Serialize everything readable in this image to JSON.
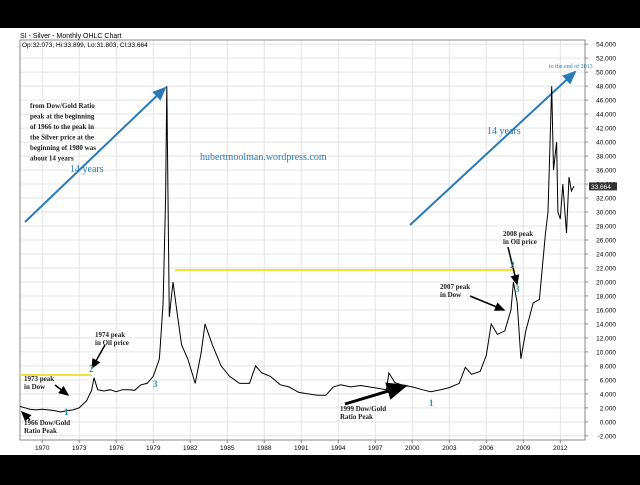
{
  "chart_data": {
    "type": "line",
    "title": "SI - Silver - Monthly OHLC Chart",
    "ohlc": "Op:32.073, Hi:33.899, Lo:31.803, Cl:33.664",
    "last_price": {
      "value": 33.664,
      "label": "33.664"
    },
    "color": "#000000",
    "x": [
      1968.2,
      1968.6,
      1969,
      1969.5,
      1970,
      1970.5,
      1971,
      1971.5,
      1972,
      1972.5,
      1973,
      1973.3,
      1973.6,
      1974,
      1974.2,
      1974.5,
      1975,
      1975.5,
      1976,
      1976.5,
      1977,
      1977.5,
      1978,
      1978.5,
      1979,
      1979.5,
      1979.8,
      1980.0,
      1980.1,
      1980.3,
      1980.6,
      1980.9,
      1981.3,
      1981.8,
      1982.4,
      1982.9,
      1983.2,
      1983.8,
      1984.5,
      1985.2,
      1986,
      1986.8,
      1987.3,
      1987.8,
      1988.5,
      1989.3,
      1990,
      1990.8,
      1991.5,
      1992.3,
      1993,
      1993.6,
      1994.2,
      1995,
      1995.8,
      1996.5,
      1997.2,
      1997.9,
      1998.1,
      1998.6,
      1999.3,
      2000,
      2000.8,
      2001.5,
      2002.3,
      2003,
      2003.8,
      2004.3,
      2004.8,
      2005.5,
      2006,
      2006.4,
      2006.9,
      2007.5,
      2008.0,
      2008.2,
      2008.5,
      2008.8,
      2009.2,
      2009.8,
      2010.3,
      2010.8,
      2011.0,
      2011.3,
      2011.45,
      2011.7,
      2011.8,
      2012.0,
      2012.2,
      2012.5,
      2012.7,
      2012.9,
      2013.1
    ],
    "values": [
      2.2,
      2.0,
      1.8,
      1.7,
      1.8,
      1.7,
      1.6,
      1.4,
      1.6,
      1.7,
      2.0,
      2.5,
      3.0,
      4.5,
      6.3,
      4.6,
      4.4,
      4.6,
      4.3,
      4.6,
      4.6,
      4.5,
      5.3,
      5.5,
      6.5,
      9.0,
      17,
      32,
      48,
      15,
      20,
      16,
      11,
      9,
      5.5,
      10,
      14,
      11,
      8,
      6.5,
      5.5,
      5.5,
      8,
      7,
      6.5,
      5.3,
      5,
      4.2,
      4,
      3.8,
      3.8,
      5,
      5.3,
      5,
      5.2,
      5,
      4.8,
      4.6,
      7,
      5.6,
      5.2,
      5,
      4.6,
      4.3,
      4.6,
      4.9,
      5.5,
      7.8,
      6.8,
      7.2,
      9.5,
      14,
      12.5,
      13,
      16,
      20,
      17,
      9,
      13,
      17,
      17.5,
      27,
      30,
      48,
      36,
      40,
      30,
      29,
      34,
      27,
      35,
      33,
      33.7
    ],
    "xlim": [
      1968.2,
      2014
    ],
    "xticks": [
      1970,
      1973,
      1976,
      1979,
      1982,
      1985,
      1988,
      1991,
      1994,
      1997,
      2000,
      2003,
      2006,
      2009,
      2012
    ],
    "ylim": [
      -2.6,
      54.6
    ],
    "yticks": [
      {
        "value": -2,
        "label": "-2.000"
      },
      {
        "value": 0,
        "label": "0.000"
      },
      {
        "value": 2,
        "label": "2.000"
      },
      {
        "value": 4,
        "label": "4.000"
      },
      {
        "value": 6,
        "label": "6.000"
      },
      {
        "value": 8,
        "label": "8.000"
      },
      {
        "value": 10,
        "label": "10.000"
      },
      {
        "value": 12,
        "label": "12.000"
      },
      {
        "value": 14,
        "label": "14.000"
      },
      {
        "value": 16,
        "label": "16.000"
      },
      {
        "value": 18,
        "label": "18.000"
      },
      {
        "value": 20,
        "label": "20.000"
      },
      {
        "value": 22,
        "label": "22.000"
      },
      {
        "value": 24,
        "label": "24.000"
      },
      {
        "value": 26,
        "label": "26.000"
      },
      {
        "value": 28,
        "label": "28.000"
      },
      {
        "value": 30,
        "label": "30.000"
      },
      {
        "value": 32,
        "label": "32.000"
      },
      {
        "value": 34,
        "label": "34.000"
      },
      {
        "value": 36,
        "label": "36.000"
      },
      {
        "value": 38,
        "label": "38.000"
      },
      {
        "value": 40,
        "label": "40.000"
      },
      {
        "value": 42,
        "label": "42.000"
      },
      {
        "value": 44,
        "label": "44.000"
      },
      {
        "value": 46,
        "label": "46.000"
      },
      {
        "value": 48,
        "label": "48.000"
      },
      {
        "value": 50,
        "label": "50.000"
      },
      {
        "value": 52,
        "label": "52.000"
      },
      {
        "value": 54,
        "label": "54.000"
      }
    ],
    "grid": true,
    "annotations": [
      [
        "from Dow/Gold Ratio",
        "peak at the beginning",
        "of 1966 to the peak in",
        "the Silver price at the",
        "beginning of 1980 was",
        "about 14 years"
      ],
      [
        "14 years"
      ],
      [
        "hubertmoolman.wordpress.com"
      ],
      [
        "14 years"
      ],
      [
        "to the end of 2013"
      ],
      [
        "2008 peak",
        "in Oil price"
      ],
      [
        "2007 peak",
        "in Dow"
      ],
      [
        "1974 peak",
        "in Oil price"
      ],
      [
        "1973 peak",
        "in Dow"
      ],
      [
        "1966 Dow/Gold",
        "Ratio Peak"
      ],
      [
        "1999 Dow/Gold",
        "Ratio Peak"
      ],
      [
        "2"
      ],
      [
        "3"
      ],
      [
        "1"
      ],
      [
        "1"
      ],
      [
        "2"
      ],
      [
        "3"
      ]
    ]
  }
}
